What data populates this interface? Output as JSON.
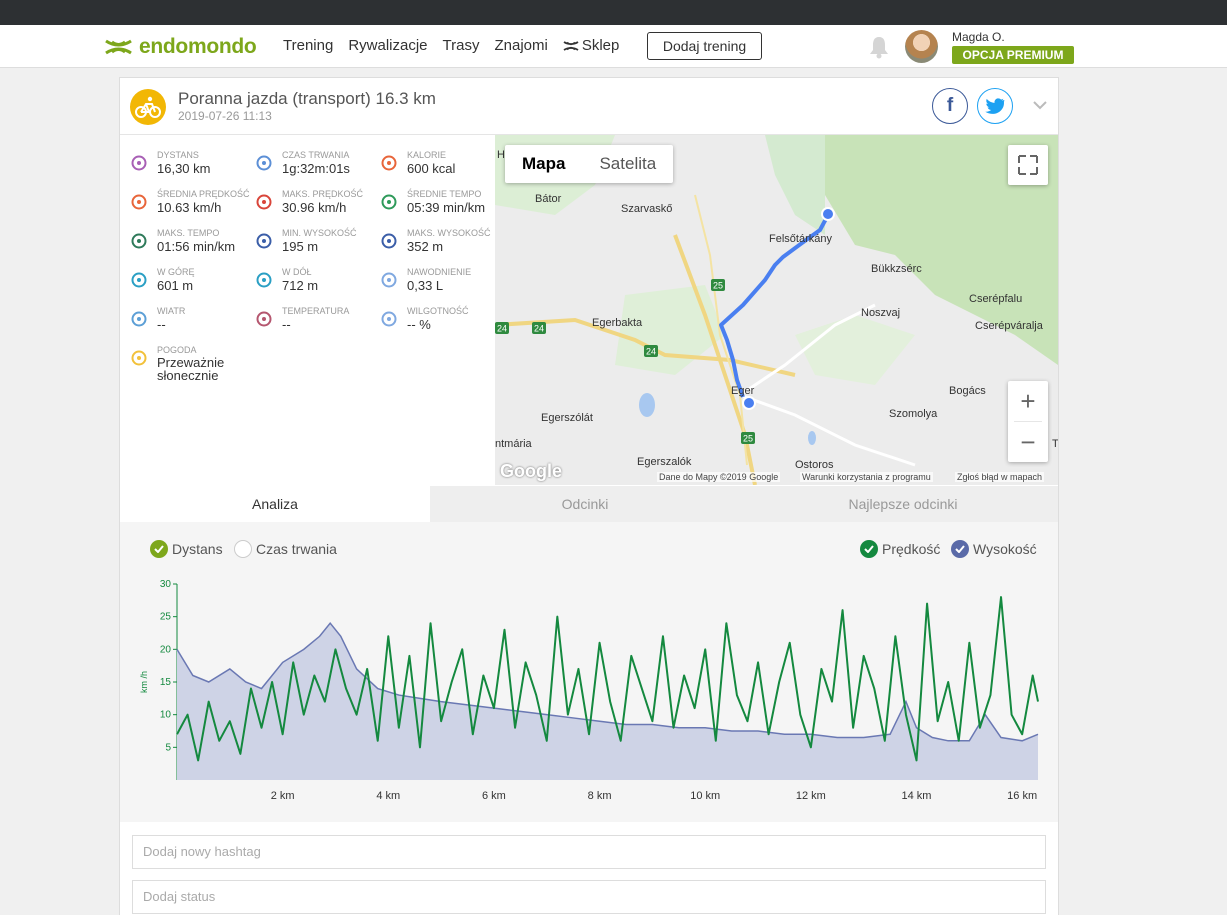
{
  "nav": {
    "logo": "endomondo",
    "items": [
      "Trening",
      "Rywalizacje",
      "Trasy",
      "Znajomi",
      "Sklep"
    ],
    "add_workout": "Dodaj trening",
    "user_name": "Magda O.",
    "premium": "OPCJA PREMIUM"
  },
  "workout": {
    "title": "Poranna jazda (transport) 16.3 km",
    "date": "2019-07-26 11:13",
    "facebook": "f"
  },
  "stats": [
    {
      "label": "DYSTANS",
      "value": "16,30 km",
      "icon": "distance-icon",
      "color": "#a85fb5"
    },
    {
      "label": "CZAS TRWANIA",
      "value": "1g:32m:01s",
      "icon": "stopwatch-icon",
      "color": "#5c8fd6"
    },
    {
      "label": "KALORIE",
      "value": "600 kcal",
      "icon": "flame-icon",
      "color": "#e8653a"
    },
    {
      "label": "ŚREDNIA PRĘDKOŚĆ",
      "value": "10.63 km/h",
      "icon": "speedometer-icon",
      "color": "#e8653a"
    },
    {
      "label": "MAKS. PRĘDKOŚĆ",
      "value": "30.96 km/h",
      "icon": "speedometer-max-icon",
      "color": "#d9453a"
    },
    {
      "label": "ŚREDNIE TEMPO",
      "value": "05:39 min/km",
      "icon": "pace-icon",
      "color": "#2e9a5a"
    },
    {
      "label": "MAKS. TEMPO",
      "value": "01:56 min/km",
      "icon": "pace-max-icon",
      "color": "#2e7a5a"
    },
    {
      "label": "MIN. WYSOKOŚĆ",
      "value": "195 m",
      "icon": "mountain-low-icon",
      "color": "#3b5ea8"
    },
    {
      "label": "MAKS. WYSOKOŚĆ",
      "value": "352 m",
      "icon": "mountain-high-icon",
      "color": "#3b5ea8"
    },
    {
      "label": "W GÓRĘ",
      "value": "601 m",
      "icon": "ascent-icon",
      "color": "#2a9fc4"
    },
    {
      "label": "W DÓŁ",
      "value": "712 m",
      "icon": "descent-icon",
      "color": "#2a9fc4"
    },
    {
      "label": "NAWODNIENIE",
      "value": "0,33 L",
      "icon": "water-drops-icon",
      "color": "#7fa8e0"
    },
    {
      "label": "WIATR",
      "value": "--",
      "icon": "wind-icon",
      "color": "#5c9fd6"
    },
    {
      "label": "TEMPERATURA",
      "value": "--",
      "icon": "thermometer-icon",
      "color": "#b5566f"
    },
    {
      "label": "WILGOTNOŚĆ",
      "value": "-- %",
      "icon": "humidity-icon",
      "color": "#7fa8e0"
    },
    {
      "label": "POGODA",
      "value": "Przeważnie słonecznie",
      "icon": "sun-icon",
      "color": "#f2c13a"
    }
  ],
  "map": {
    "tab_map": "Mapa",
    "tab_satellite": "Satelita",
    "zoom_in": "+",
    "zoom_out": "−",
    "google": "Google",
    "footer_data": "Dane do Mapy ©2019 Google",
    "footer_terms": "Warunki korzystania z programu",
    "footer_report": "Zgłoś błąd w mapach",
    "places": [
      "Bátor",
      "Szarvaskő",
      "Felsőtárkány",
      "Bükkzsérc",
      "Cserépfalu",
      "Cserépváralja",
      "Noszvaj",
      "Egerbakta",
      "Eger",
      "Bogács",
      "Szomolya",
      "Egerszólát",
      "ntmária",
      "Egerszalók",
      "Ostoros",
      "H",
      "T"
    ],
    "roads": [
      "25",
      "24",
      "24",
      "24",
      "25"
    ]
  },
  "tabs": [
    "Analiza",
    "Odcinki",
    "Najlepsze odcinki"
  ],
  "chart_legend": {
    "distance": "Dystans",
    "duration": "Czas trwania",
    "speed": "Prędkość",
    "elevation": "Wysokość"
  },
  "chart_data": {
    "type": "area",
    "xlabel": "",
    "ylabel": "km /h",
    "ylim": [
      0,
      30
    ],
    "xlim": [
      0,
      16.3
    ],
    "y_ticks": [
      "30",
      "25",
      "20",
      "15",
      "10",
      "5"
    ],
    "x_ticks": [
      "2 km",
      "4 km",
      "6 km",
      "8 km",
      "10 km",
      "12 km",
      "14 km",
      "16 km"
    ],
    "colors": {
      "speed": "#14893f",
      "elevation_fill": "#ced3e6",
      "elevation_line": "#6a78b3"
    },
    "series": [
      {
        "name": "Wysokość",
        "x": [
          0.0,
          0.3,
          0.6,
          1.0,
          1.3,
          1.6,
          2.0,
          2.4,
          2.7,
          2.9,
          3.1,
          3.4,
          3.8,
          4.2,
          4.6,
          5.0,
          5.5,
          6.0,
          6.5,
          7.0,
          7.5,
          8.0,
          8.5,
          9.0,
          9.5,
          10.0,
          10.5,
          11.0,
          11.5,
          12.0,
          12.5,
          13.0,
          13.5,
          13.8,
          14.0,
          14.3,
          14.6,
          15.0,
          15.3,
          15.6,
          16.0,
          16.3
        ],
        "values": [
          20,
          16,
          15,
          17,
          15,
          14,
          18,
          20,
          22,
          24,
          22,
          17,
          14,
          13,
          12.5,
          12,
          11.5,
          11,
          10.5,
          10,
          9.5,
          9,
          8.5,
          8.5,
          8,
          8,
          7.5,
          7.5,
          7,
          7,
          6.5,
          6.5,
          7,
          12,
          8,
          6.5,
          6,
          6,
          10,
          6.5,
          6,
          7
        ]
      },
      {
        "name": "Prędkość",
        "x": [
          0.0,
          0.2,
          0.4,
          0.6,
          0.8,
          1.0,
          1.2,
          1.4,
          1.6,
          1.8,
          2.0,
          2.2,
          2.4,
          2.6,
          2.8,
          3.0,
          3.2,
          3.4,
          3.6,
          3.8,
          4.0,
          4.2,
          4.4,
          4.6,
          4.8,
          5.0,
          5.2,
          5.4,
          5.6,
          5.8,
          6.0,
          6.2,
          6.4,
          6.6,
          6.8,
          7.0,
          7.2,
          7.4,
          7.6,
          7.8,
          8.0,
          8.2,
          8.4,
          8.6,
          8.8,
          9.0,
          9.2,
          9.4,
          9.6,
          9.8,
          10.0,
          10.2,
          10.4,
          10.6,
          10.8,
          11.0,
          11.2,
          11.4,
          11.6,
          11.8,
          12.0,
          12.2,
          12.4,
          12.6,
          12.8,
          13.0,
          13.2,
          13.4,
          13.6,
          13.8,
          14.0,
          14.2,
          14.4,
          14.6,
          14.8,
          15.0,
          15.2,
          15.4,
          15.6,
          15.8,
          16.0,
          16.2,
          16.3
        ],
        "values": [
          7,
          10,
          3,
          12,
          6,
          9,
          4,
          14,
          8,
          15,
          7,
          18,
          10,
          16,
          12,
          20,
          14,
          10,
          17,
          6,
          22,
          8,
          19,
          5,
          24,
          9,
          15,
          20,
          7,
          16,
          11,
          23,
          8,
          18,
          13,
          6,
          25,
          10,
          17,
          7,
          21,
          12,
          6,
          19,
          14,
          9,
          22,
          8,
          16,
          11,
          20,
          6,
          24,
          13,
          9,
          18,
          7,
          15,
          21,
          10,
          5,
          17,
          12,
          26,
          8,
          19,
          14,
          6,
          22,
          10,
          3,
          27,
          9,
          15,
          6,
          21,
          8,
          13,
          28,
          10,
          7,
          16,
          12
        ]
      }
    ]
  }
}
